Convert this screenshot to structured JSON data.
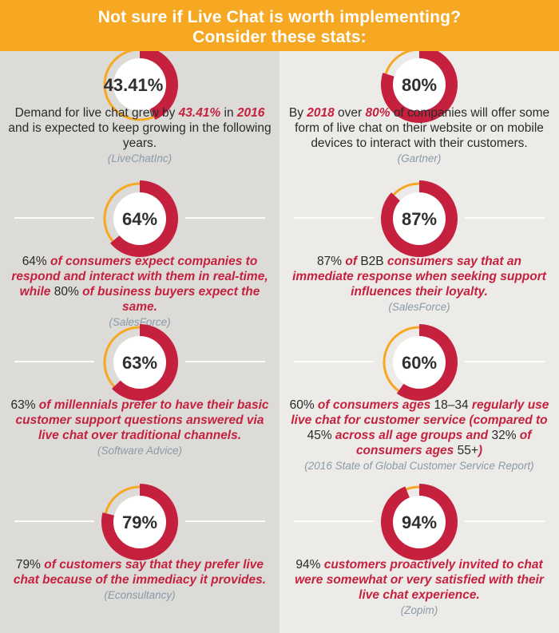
{
  "header": {
    "title": "Not sure if Live Chat is worth implementing?",
    "subtitle": "Consider these stats:"
  },
  "colors": {
    "accent": "#c5213e",
    "orange": "#f7a823",
    "source": "#8a9aa8"
  },
  "stats": [
    {
      "value": 43.41,
      "label": "43.41%",
      "text": [
        "Demand for live chat grew by ",
        "43.41%",
        " in ",
        "2016",
        " and is expected to keep growing in the following years."
      ],
      "source": "(LiveChatInc)"
    },
    {
      "value": 80,
      "label": "80%",
      "text": [
        "By ",
        "2018",
        " over ",
        "80%",
        " of companies will offer some form of live chat on their website or on mobile devices to interact with their customers."
      ],
      "source": "(Gartner)"
    },
    {
      "value": 64,
      "label": "64%",
      "text": [
        "64%",
        " of consumers expect companies to respond and interact with them in real-time, while ",
        "80%",
        " of business buyers expect the same."
      ],
      "source": "(SalesForce)"
    },
    {
      "value": 87,
      "label": "87%",
      "text": [
        "87%",
        " of ",
        "B2B",
        " consumers say that an immediate response when seeking support influences their loyalty."
      ],
      "source": "(SalesForce)"
    },
    {
      "value": 63,
      "label": "63%",
      "text": [
        "63%",
        " of millennials prefer to have their basic customer support questions answered via live chat over traditional channels."
      ],
      "source": "(Software Advice)"
    },
    {
      "value": 60,
      "label": "60%",
      "text": [
        "60%",
        " of consumers ages ",
        "18–34",
        " regularly use live chat for customer service (compared to ",
        "45%",
        " across all age groups and ",
        "32%",
        " of consumers ages ",
        "55+",
        ")"
      ],
      "source": "(2016 State of Global Customer Service Report)"
    },
    {
      "value": 79,
      "label": "79%",
      "text": [
        "79%",
        " of customers say that they prefer live chat because of the immediacy it provides."
      ],
      "source": "(Econsultancy)"
    },
    {
      "value": 94,
      "label": "94%",
      "text": [
        "94%",
        " customers proactively invited to chat were somewhat or very satisfied with their live chat experience."
      ],
      "source": "(Zopim)"
    }
  ]
}
